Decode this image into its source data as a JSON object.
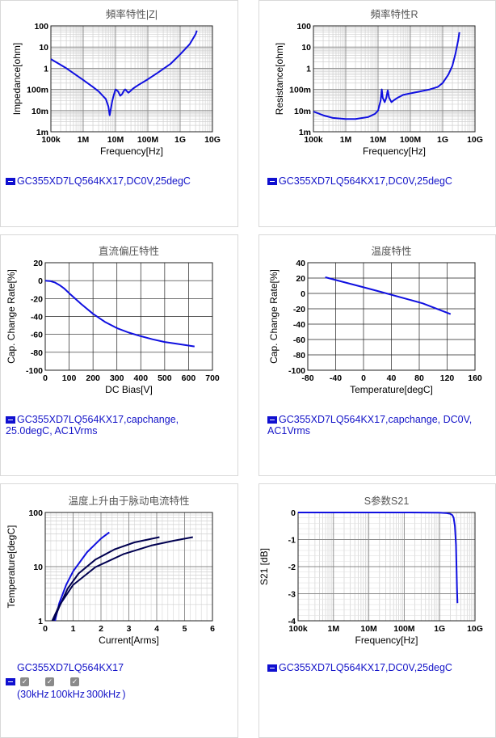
{
  "cards": [
    {
      "title": "頻率特性|Z|",
      "legend": "GC355XD7LQ564KX17,DC0V,25degC"
    },
    {
      "title": "頻率特性R",
      "legend": "GC355XD7LQ564KX17,DC0V,25degC"
    },
    {
      "title": "直流偏圧特性",
      "legend": "GC355XD7LQ564KX17,capchange,\n25.0degC, AC1Vrms"
    },
    {
      "title": "温度特性",
      "legend": "GC355XD7LQ564KX17,capchange, DC0V,\nAC1Vrms"
    },
    {
      "title": "温度上升由于脉动电流特性",
      "legend": "GC355XD7LQ564KX17"
    },
    {
      "title": "S参数S21",
      "legend": "GC355XD7LQ564KX17,DC0V,25degC"
    }
  ],
  "ripple_freqs": [
    "30kHz",
    "100kHz",
    "300kHz"
  ],
  "colors": {
    "series": "#1010e0",
    "dark": "#000050",
    "legend": "#1414c8"
  },
  "chart_data": [
    {
      "type": "line",
      "title": "頻率特性|Z|",
      "xlabel": "Frequency[Hz]",
      "ylabel": "Impedance[ohm]",
      "xscale": "log",
      "yscale": "log",
      "xlim": [
        100000,
        10000000000
      ],
      "ylim": [
        0.001,
        100
      ],
      "xticks": [
        "100k",
        "1M",
        "10M",
        "100M",
        "1G",
        "10G"
      ],
      "yticks": [
        "1m",
        "10m",
        "100m",
        "1",
        "10",
        "100"
      ],
      "series": [
        {
          "x": [
            100000,
            300000,
            1000000,
            2000000,
            3000000,
            5000000,
            6000000,
            6600000,
            7000000,
            8000000,
            9000000,
            10000000,
            12000000,
            14000000,
            16000000,
            18000000,
            20000000,
            25000000,
            28000000,
            35000000,
            50000000,
            100000000,
            200000000,
            500000000,
            1000000000,
            2000000000,
            3000000000,
            3300000000
          ],
          "y": [
            2.7,
            1.0,
            0.28,
            0.13,
            0.08,
            0.035,
            0.016,
            0.006,
            0.01,
            0.03,
            0.06,
            0.1,
            0.08,
            0.05,
            0.06,
            0.085,
            0.1,
            0.07,
            0.08,
            0.11,
            0.16,
            0.3,
            0.6,
            1.6,
            4.5,
            14,
            40,
            60
          ]
        }
      ]
    },
    {
      "type": "line",
      "title": "頻率特性R",
      "xlabel": "Frequency[Hz]",
      "ylabel": "Resistance[ohm]",
      "xscale": "log",
      "yscale": "log",
      "xlim": [
        100000,
        10000000000
      ],
      "ylim": [
        0.001,
        100
      ],
      "xticks": [
        "100k",
        "1M",
        "10M",
        "100M",
        "1G",
        "10G"
      ],
      "yticks": [
        "1m",
        "10m",
        "100m",
        "1",
        "10",
        "100"
      ],
      "series": [
        {
          "x": [
            100000,
            200000,
            400000,
            1000000,
            2000000,
            5000000,
            8000000,
            10000000,
            12000000,
            13000000,
            14000000,
            16000000,
            18000000,
            20000000,
            22000000,
            26000000,
            30000000,
            40000000,
            60000000,
            100000000,
            200000000,
            400000000,
            700000000,
            1000000000,
            1500000000,
            2000000000,
            2500000000,
            3000000000,
            3300000000
          ],
          "y": [
            0.009,
            0.006,
            0.0045,
            0.004,
            0.004,
            0.005,
            0.007,
            0.01,
            0.03,
            0.1,
            0.04,
            0.025,
            0.04,
            0.09,
            0.04,
            0.025,
            0.03,
            0.04,
            0.055,
            0.065,
            0.08,
            0.1,
            0.13,
            0.2,
            0.5,
            1.3,
            5,
            20,
            50
          ]
        }
      ]
    },
    {
      "type": "line",
      "title": "直流偏圧特性",
      "xlabel": "DC Bias[V]",
      "ylabel": "Cap. Change Rate[%]",
      "xlim": [
        0,
        700
      ],
      "ylim": [
        -100,
        20
      ],
      "xticks": [
        "0",
        "100",
        "200",
        "300",
        "400",
        "500",
        "600",
        "700"
      ],
      "yticks": [
        "-100",
        "-80",
        "-60",
        "-40",
        "-20",
        "0",
        "20"
      ],
      "series": [
        {
          "x": [
            0,
            20,
            40,
            60,
            80,
            100,
            150,
            200,
            250,
            300,
            350,
            400,
            450,
            500,
            550,
            600,
            625
          ],
          "y": [
            0,
            -0.5,
            -2,
            -5,
            -9,
            -14,
            -26,
            -37,
            -46,
            -53,
            -58,
            -62,
            -65.5,
            -68.5,
            -70.5,
            -72.5,
            -73.5
          ]
        }
      ]
    },
    {
      "type": "line",
      "title": "温度特性",
      "xlabel": "Temperature[degC]",
      "ylabel": "Cap. Change Rate[%]",
      "xlim": [
        -80,
        160
      ],
      "ylim": [
        -100,
        40
      ],
      "xticks": [
        "-80",
        "-40",
        "0",
        "40",
        "80",
        "120",
        "160"
      ],
      "yticks": [
        "-100",
        "-80",
        "-60",
        "-40",
        "-20",
        "0",
        "20",
        "40"
      ],
      "series": [
        {
          "x": [
            -55,
            0,
            25,
            85,
            125
          ],
          "y": [
            21,
            8,
            2,
            -13,
            -27
          ]
        }
      ]
    },
    {
      "type": "line",
      "title": "温度上升由于脉动电流特性",
      "xlabel": "Current[Arms]",
      "ylabel": "Temperature[degC]",
      "yscale": "log",
      "xlim": [
        0,
        6
      ],
      "ylim": [
        1,
        100
      ],
      "xticks": [
        "0",
        "1",
        "2",
        "3",
        "4",
        "5",
        "6"
      ],
      "yticks": [
        "1",
        "10",
        "100"
      ],
      "series": [
        {
          "name": "30kHz",
          "color": "#1010e0",
          "x": [
            0.35,
            0.5,
            0.75,
            1.0,
            1.5,
            2.0,
            2.3
          ],
          "y": [
            1,
            2.1,
            4.6,
            8.2,
            18.5,
            33,
            43
          ]
        },
        {
          "name": "100kHz",
          "color": "#000050",
          "x": [
            0.3,
            0.5,
            0.8,
            1.2,
            1.8,
            2.5,
            3.2,
            4.1
          ],
          "y": [
            1,
            1.8,
            3.9,
            7.5,
            13.5,
            21,
            28,
            35
          ]
        },
        {
          "name": "300kHz",
          "color": "#000050",
          "x": [
            0.25,
            0.5,
            1.0,
            1.8,
            2.8,
            3.8,
            4.6,
            5.3
          ],
          "y": [
            1,
            1.9,
            4.6,
            9.8,
            17,
            24.5,
            30,
            35
          ]
        }
      ]
    },
    {
      "type": "line",
      "title": "S参数S21",
      "xlabel": "Frequency[Hz]",
      "ylabel": "S21 [dB]",
      "xscale": "log",
      "xlim": [
        100000,
        10000000000
      ],
      "ylim": [
        -4,
        0
      ],
      "xticks": [
        "100k",
        "1M",
        "10M",
        "100M",
        "1G",
        "10G"
      ],
      "yticks": [
        "-4",
        "-3",
        "-2",
        "-1",
        "0"
      ],
      "series": [
        {
          "x": [
            100000,
            1000000,
            10000000,
            100000000,
            1000000000,
            1500000000,
            2000000000,
            2300000000,
            2500000000,
            2700000000,
            2900000000,
            3000000000,
            3100000000,
            3200000000
          ],
          "y": [
            0,
            0,
            0,
            0,
            -0.01,
            -0.02,
            -0.05,
            -0.1,
            -0.2,
            -0.5,
            -1.2,
            -2,
            -2.8,
            -3.35
          ]
        }
      ]
    }
  ]
}
